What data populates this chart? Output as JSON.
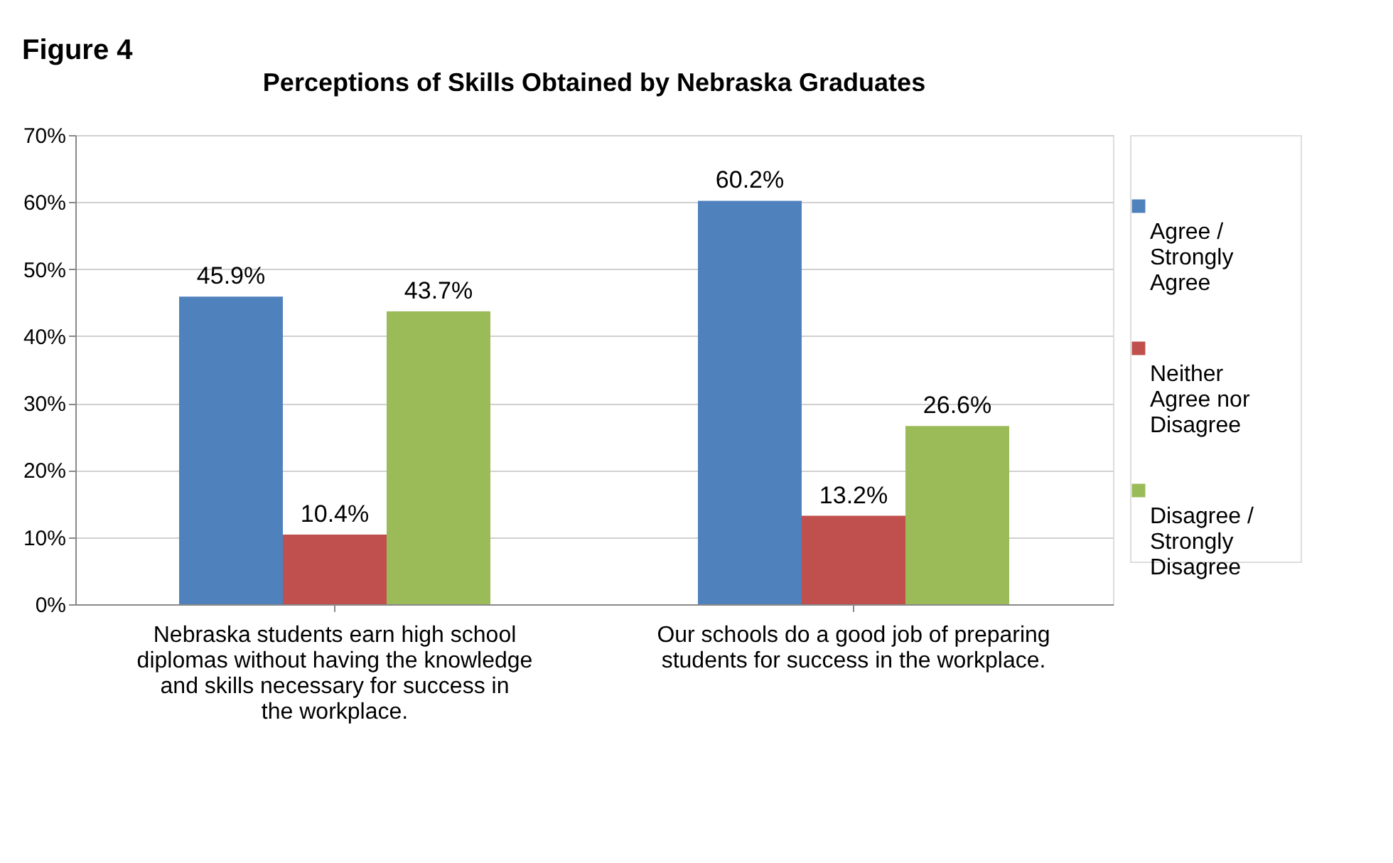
{
  "chart_data": {
    "type": "bar",
    "title": "Perceptions of Skills Obtained by Nebraska Graduates",
    "annotations": [
      "Figure 4"
    ],
    "categories": [
      "Nebraska students earn high school diplomas without having the knowledge and skills necessary for success in the workplace.",
      "Our schools do a good job of preparing students for success in the workplace."
    ],
    "series": [
      {
        "name": "Agree / Strongly Agree",
        "color": "#4f81bd",
        "values": [
          45.9,
          60.2
        ],
        "value_labels": [
          "45.9%",
          "60.2%"
        ]
      },
      {
        "name": "Neither Agree nor Disagree",
        "color": "#c0504d",
        "values": [
          10.4,
          13.2
        ],
        "value_labels": [
          "10.4%",
          "13.2%"
        ]
      },
      {
        "name": "Disagree / Strongly Disagree",
        "color": "#9bbb59",
        "values": [
          43.7,
          26.6
        ],
        "value_labels": [
          "43.7%",
          "26.6%"
        ]
      }
    ],
    "ylim": [
      0,
      70
    ],
    "yticks": [
      {
        "value": 0,
        "label": "0%"
      },
      {
        "value": 10,
        "label": "10%"
      },
      {
        "value": 20,
        "label": "20%"
      },
      {
        "value": 30,
        "label": "30%"
      },
      {
        "value": 40,
        "label": "40%"
      },
      {
        "value": 50,
        "label": "50%"
      },
      {
        "value": 60,
        "label": "60%"
      },
      {
        "value": 70,
        "label": "70%"
      }
    ],
    "grid": "y",
    "legend": "right"
  }
}
